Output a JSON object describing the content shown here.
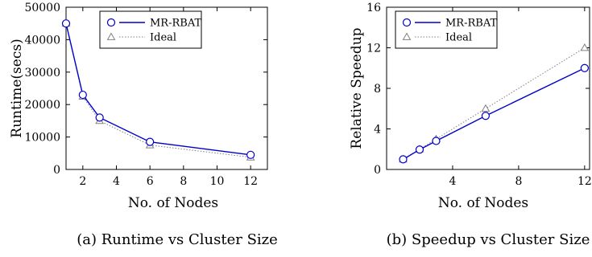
{
  "chart_data": [
    {
      "type": "line",
      "caption": "(a) Runtime vs Cluster Size",
      "xlabel": "No. of Nodes",
      "ylabel": "Runtime(secs)",
      "xlim": [
        1,
        13
      ],
      "ylim": [
        0,
        50000
      ],
      "xticks": [
        2,
        4,
        6,
        8,
        10,
        12
      ],
      "yticks": [
        0,
        10000,
        20000,
        30000,
        40000,
        50000
      ],
      "x": [
        1,
        2,
        3,
        6,
        12
      ],
      "legend_position": "top-right",
      "series": [
        {
          "name": "MR-RBAT",
          "values": [
            45000,
            23000,
            16000,
            8500,
            4500
          ],
          "color": "#0000cc",
          "marker": "circle",
          "style": "solid"
        },
        {
          "name": "Ideal",
          "values": [
            45000,
            22500,
            15000,
            7500,
            3750
          ],
          "color": "#808080",
          "marker": "triangle",
          "style": "dotted"
        }
      ]
    },
    {
      "type": "line",
      "caption": "(b) Speedup vs Cluster Size",
      "xlabel": "No. of Nodes",
      "ylabel": "Relative Speedup",
      "xlim": [
        0,
        12.3
      ],
      "ylim": [
        0,
        16
      ],
      "xticks": [
        4,
        8,
        12
      ],
      "yticks": [
        0,
        4,
        8,
        12,
        16
      ],
      "x": [
        1,
        2,
        3,
        6,
        12
      ],
      "legend_position": "top-left",
      "series": [
        {
          "name": "MR-RBAT",
          "values": [
            1,
            1.96,
            2.81,
            5.29,
            10
          ],
          "color": "#0000cc",
          "marker": "circle",
          "style": "solid"
        },
        {
          "name": "Ideal",
          "values": [
            1,
            2,
            3,
            6,
            12
          ],
          "color": "#808080",
          "marker": "triangle",
          "style": "dotted"
        }
      ]
    }
  ]
}
